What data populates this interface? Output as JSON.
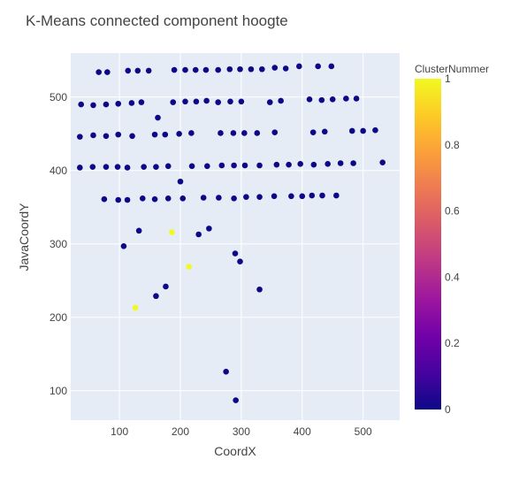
{
  "chart_data": {
    "type": "scatter",
    "title": "K-Means connected component hoogte",
    "xlabel": "CoordX",
    "ylabel": "JavaCoordY",
    "xlim": [
      20,
      560
    ],
    "ylim": [
      60,
      560
    ],
    "xticks": [
      100,
      200,
      300,
      400,
      500
    ],
    "yticks": [
      100,
      200,
      300,
      400,
      500
    ],
    "grid": true,
    "colorbar": {
      "title": "ClusterNummer",
      "min": 0,
      "max": 1,
      "ticks": [
        0,
        0.2,
        0.4,
        0.6,
        0.8,
        1
      ],
      "colorscale": [
        "#0d0887",
        "#46039f",
        "#7201a8",
        "#9c179e",
        "#bd3786",
        "#d8576b",
        "#ed7953",
        "#fb9f3a",
        "#fdca26",
        "#f0f921"
      ]
    },
    "points": [
      [
        66,
        534,
        0
      ],
      [
        80,
        534,
        0
      ],
      [
        114,
        536,
        0
      ],
      [
        130,
        536,
        0
      ],
      [
        148,
        536,
        0
      ],
      [
        190,
        537,
        0
      ],
      [
        208,
        537,
        0
      ],
      [
        225,
        537,
        0
      ],
      [
        242,
        537,
        0
      ],
      [
        262,
        537,
        0
      ],
      [
        281,
        538,
        0
      ],
      [
        298,
        538,
        0
      ],
      [
        316,
        538,
        0
      ],
      [
        334,
        538,
        0
      ],
      [
        355,
        540,
        0
      ],
      [
        373,
        539,
        0
      ],
      [
        395,
        542,
        0
      ],
      [
        426,
        542,
        0
      ],
      [
        448,
        542,
        0
      ],
      [
        37,
        490,
        0
      ],
      [
        57,
        489,
        0
      ],
      [
        78,
        490,
        0
      ],
      [
        98,
        491,
        0
      ],
      [
        120,
        492,
        0
      ],
      [
        136,
        493,
        0
      ],
      [
        163,
        472,
        0
      ],
      [
        188,
        493,
        0
      ],
      [
        208,
        494,
        0
      ],
      [
        226,
        494,
        0
      ],
      [
        243,
        495,
        0
      ],
      [
        262,
        493,
        0
      ],
      [
        282,
        494,
        0
      ],
      [
        300,
        494,
        0
      ],
      [
        347,
        493,
        0
      ],
      [
        365,
        495,
        0
      ],
      [
        412,
        497,
        0
      ],
      [
        432,
        496,
        0
      ],
      [
        450,
        497,
        0
      ],
      [
        472,
        498,
        0
      ],
      [
        489,
        498,
        0
      ],
      [
        35,
        446,
        0
      ],
      [
        57,
        448,
        0
      ],
      [
        78,
        447,
        0
      ],
      [
        98,
        449,
        0
      ],
      [
        121,
        447,
        0
      ],
      [
        158,
        449,
        0
      ],
      [
        175,
        449,
        0
      ],
      [
        198,
        450,
        0
      ],
      [
        218,
        451,
        0
      ],
      [
        266,
        451,
        0
      ],
      [
        287,
        451,
        0
      ],
      [
        305,
        451,
        0
      ],
      [
        326,
        451,
        0
      ],
      [
        355,
        452,
        0
      ],
      [
        418,
        452,
        0
      ],
      [
        437,
        453,
        0
      ],
      [
        482,
        454,
        0
      ],
      [
        500,
        454,
        0
      ],
      [
        520,
        455,
        0
      ],
      [
        35,
        404,
        0
      ],
      [
        56,
        405,
        0
      ],
      [
        78,
        405,
        0
      ],
      [
        97,
        405,
        0
      ],
      [
        113,
        404,
        0
      ],
      [
        140,
        405,
        0
      ],
      [
        160,
        405,
        0
      ],
      [
        180,
        406,
        0
      ],
      [
        200,
        385,
        0
      ],
      [
        219,
        406,
        0
      ],
      [
        244,
        406,
        0
      ],
      [
        268,
        407,
        0
      ],
      [
        288,
        407,
        0
      ],
      [
        306,
        407,
        0
      ],
      [
        330,
        407,
        0
      ],
      [
        358,
        408,
        0
      ],
      [
        378,
        408,
        0
      ],
      [
        397,
        409,
        0
      ],
      [
        419,
        408,
        0
      ],
      [
        442,
        409,
        0
      ],
      [
        463,
        410,
        0
      ],
      [
        484,
        410,
        0
      ],
      [
        532,
        411,
        0
      ],
      [
        75,
        361,
        0
      ],
      [
        98,
        360,
        0
      ],
      [
        113,
        360,
        0
      ],
      [
        138,
        362,
        0
      ],
      [
        158,
        361,
        0
      ],
      [
        180,
        362,
        0
      ],
      [
        204,
        362,
        0
      ],
      [
        238,
        363,
        0
      ],
      [
        263,
        363,
        0
      ],
      [
        288,
        362,
        0
      ],
      [
        308,
        364,
        0
      ],
      [
        330,
        364,
        0
      ],
      [
        354,
        365,
        0
      ],
      [
        382,
        365,
        0
      ],
      [
        400,
        365,
        0
      ],
      [
        416,
        366,
        0
      ],
      [
        433,
        366,
        0
      ],
      [
        456,
        366,
        0
      ],
      [
        132,
        318,
        0
      ],
      [
        107,
        297,
        0
      ],
      [
        186,
        316,
        1
      ],
      [
        230,
        313,
        0
      ],
      [
        247,
        321,
        0
      ],
      [
        290,
        287,
        0
      ],
      [
        298,
        276,
        0
      ],
      [
        214,
        269,
        1
      ],
      [
        330,
        238,
        0
      ],
      [
        176,
        242,
        0
      ],
      [
        160,
        229,
        0
      ],
      [
        126,
        213,
        1
      ],
      [
        275,
        126,
        0
      ],
      [
        291,
        87,
        0
      ]
    ]
  }
}
